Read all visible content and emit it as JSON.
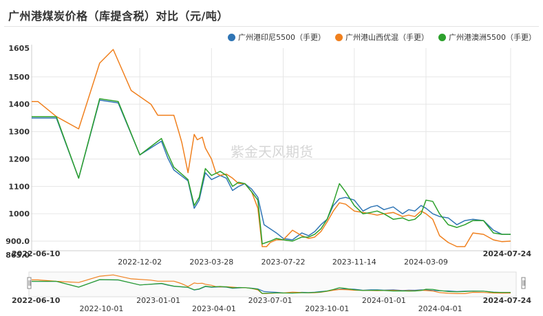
{
  "title": "广州港煤炭价格（库提含税）对比（元/吨）",
  "watermark": "紫金天风期货",
  "chart_data": {
    "type": "line",
    "ylim": [
      865,
      1605
    ],
    "y_ticks": [
      "1605",
      "1500",
      "1400",
      "1300",
      "1200",
      "1100",
      "1000",
      "900.0",
      "865.0"
    ],
    "y_tick_values": [
      1605,
      1500,
      1400,
      1300,
      1200,
      1100,
      1000,
      900,
      865
    ],
    "xlim": [
      "2022-06-10",
      "2024-07-24"
    ],
    "x_ticks": [
      "2022-06-10",
      "2022-12-02",
      "2023-03-28",
      "2023-07-22",
      "2023-11-14",
      "2024-03-09",
      "2024-07-24"
    ],
    "nav_ticks": [
      "2022-06-10",
      "2022-10-01",
      "2023-01-01",
      "2023-04-01",
      "2023-07-01",
      "2023-10-01",
      "2024-01-01",
      "2024-04-01",
      "2024-07-24"
    ],
    "grid": true,
    "legend_position": "top-right",
    "series": [
      {
        "name": "广州港印尼5500（手更）",
        "color": "#2f75b5",
        "points": [
          [
            "2022-06-10",
            1350
          ],
          [
            "2022-07-20",
            1350
          ],
          [
            "2022-08-25",
            1130
          ],
          [
            "2022-09-28",
            1415
          ],
          [
            "2022-10-28",
            1405
          ],
          [
            "2022-12-02",
            1215
          ],
          [
            "2023-01-06",
            1265
          ],
          [
            "2023-01-16",
            1205
          ],
          [
            "2023-01-26",
            1160
          ],
          [
            "2023-02-18",
            1120
          ],
          [
            "2023-02-28",
            1020
          ],
          [
            "2023-03-08",
            1050
          ],
          [
            "2023-03-18",
            1150
          ],
          [
            "2023-03-28",
            1125
          ],
          [
            "2023-04-11",
            1140
          ],
          [
            "2023-04-21",
            1130
          ],
          [
            "2023-05-01",
            1085
          ],
          [
            "2023-05-11",
            1100
          ],
          [
            "2023-05-21",
            1110
          ],
          [
            "2023-06-01",
            1090
          ],
          [
            "2023-06-11",
            1060
          ],
          [
            "2023-06-21",
            960
          ],
          [
            "2023-07-01",
            945
          ],
          [
            "2023-07-11",
            930
          ],
          [
            "2023-07-22",
            910
          ],
          [
            "2023-08-06",
            905
          ],
          [
            "2023-08-21",
            930
          ],
          [
            "2023-09-01",
            920
          ],
          [
            "2023-09-11",
            935
          ],
          [
            "2023-09-21",
            960
          ],
          [
            "2023-10-01",
            980
          ],
          [
            "2023-10-11",
            1030
          ],
          [
            "2023-10-21",
            1055
          ],
          [
            "2023-10-31",
            1060
          ],
          [
            "2023-11-14",
            1050
          ],
          [
            "2023-11-28",
            1010
          ],
          [
            "2023-12-11",
            1025
          ],
          [
            "2023-12-21",
            1030
          ],
          [
            "2024-01-01",
            1015
          ],
          [
            "2024-01-16",
            1025
          ],
          [
            "2024-01-31",
            1000
          ],
          [
            "2024-02-10",
            1015
          ],
          [
            "2024-02-20",
            1010
          ],
          [
            "2024-03-01",
            1030
          ],
          [
            "2024-03-09",
            1020
          ],
          [
            "2024-03-20",
            1000
          ],
          [
            "2024-03-31",
            990
          ],
          [
            "2024-04-14",
            985
          ],
          [
            "2024-04-28",
            960
          ],
          [
            "2024-05-11",
            975
          ],
          [
            "2024-05-24",
            980
          ],
          [
            "2024-06-10",
            975
          ],
          [
            "2024-06-26",
            940
          ],
          [
            "2024-07-10",
            925
          ],
          [
            "2024-07-24",
            925
          ]
        ]
      },
      {
        "name": "广州港山西优混（手更）",
        "color": "#f0801e",
        "points": [
          [
            "2022-06-10",
            1410
          ],
          [
            "2022-06-20",
            1410
          ],
          [
            "2022-07-20",
            1355
          ],
          [
            "2022-08-25",
            1310
          ],
          [
            "2022-09-28",
            1550
          ],
          [
            "2022-10-20",
            1600
          ],
          [
            "2022-11-18",
            1450
          ],
          [
            "2022-12-20",
            1400
          ],
          [
            "2022-12-31",
            1360
          ],
          [
            "2023-01-16",
            1360
          ],
          [
            "2023-01-26",
            1360
          ],
          [
            "2023-02-03",
            1300
          ],
          [
            "2023-02-08",
            1260
          ],
          [
            "2023-02-18",
            1150
          ],
          [
            "2023-02-28",
            1290
          ],
          [
            "2023-03-05",
            1270
          ],
          [
            "2023-03-13",
            1280
          ],
          [
            "2023-03-18",
            1240
          ],
          [
            "2023-03-28",
            1200
          ],
          [
            "2023-04-04",
            1150
          ],
          [
            "2023-04-11",
            1140
          ],
          [
            "2023-04-21",
            1145
          ],
          [
            "2023-05-01",
            1130
          ],
          [
            "2023-05-11",
            1110
          ],
          [
            "2023-05-21",
            1110
          ],
          [
            "2023-06-01",
            1080
          ],
          [
            "2023-06-11",
            1020
          ],
          [
            "2023-06-18",
            880
          ],
          [
            "2023-06-25",
            880
          ],
          [
            "2023-07-01",
            895
          ],
          [
            "2023-07-11",
            905
          ],
          [
            "2023-07-22",
            905
          ],
          [
            "2023-08-06",
            940
          ],
          [
            "2023-08-21",
            920
          ],
          [
            "2023-09-01",
            910
          ],
          [
            "2023-09-11",
            915
          ],
          [
            "2023-09-21",
            935
          ],
          [
            "2023-10-01",
            970
          ],
          [
            "2023-10-11",
            1010
          ],
          [
            "2023-10-21",
            1040
          ],
          [
            "2023-10-31",
            1035
          ],
          [
            "2023-11-14",
            1010
          ],
          [
            "2023-11-28",
            1005
          ],
          [
            "2023-12-11",
            1000
          ],
          [
            "2023-12-21",
            995
          ],
          [
            "2024-01-01",
            1000
          ],
          [
            "2024-01-16",
            1005
          ],
          [
            "2024-01-31",
            990
          ],
          [
            "2024-02-10",
            995
          ],
          [
            "2024-02-20",
            990
          ],
          [
            "2024-03-01",
            1010
          ],
          [
            "2024-03-09",
            1000
          ],
          [
            "2024-03-20",
            980
          ],
          [
            "2024-03-31",
            920
          ],
          [
            "2024-04-14",
            895
          ],
          [
            "2024-04-28",
            880
          ],
          [
            "2024-05-11",
            880
          ],
          [
            "2024-05-24",
            930
          ],
          [
            "2024-06-10",
            925
          ],
          [
            "2024-06-26",
            905
          ],
          [
            "2024-07-10",
            898
          ],
          [
            "2024-07-24",
            900
          ]
        ]
      },
      {
        "name": "广州港澳洲5500（手更）",
        "color": "#2ca02c",
        "points": [
          [
            "2022-06-10",
            1355
          ],
          [
            "2022-07-20",
            1355
          ],
          [
            "2022-08-25",
            1130
          ],
          [
            "2022-09-28",
            1420
          ],
          [
            "2022-10-28",
            1410
          ],
          [
            "2022-12-02",
            1215
          ],
          [
            "2023-01-06",
            1275
          ],
          [
            "2023-01-16",
            1220
          ],
          [
            "2023-01-26",
            1170
          ],
          [
            "2023-02-18",
            1125
          ],
          [
            "2023-02-28",
            1030
          ],
          [
            "2023-03-08",
            1060
          ],
          [
            "2023-03-18",
            1165
          ],
          [
            "2023-03-28",
            1140
          ],
          [
            "2023-04-11",
            1155
          ],
          [
            "2023-04-21",
            1140
          ],
          [
            "2023-05-01",
            1100
          ],
          [
            "2023-05-11",
            1115
          ],
          [
            "2023-05-21",
            1110
          ],
          [
            "2023-06-01",
            1080
          ],
          [
            "2023-06-11",
            1050
          ],
          [
            "2023-06-18",
            890
          ],
          [
            "2023-07-01",
            900
          ],
          [
            "2023-07-11",
            910
          ],
          [
            "2023-07-22",
            905
          ],
          [
            "2023-08-06",
            900
          ],
          [
            "2023-08-21",
            915
          ],
          [
            "2023-09-01",
            915
          ],
          [
            "2023-09-11",
            925
          ],
          [
            "2023-09-21",
            945
          ],
          [
            "2023-10-01",
            980
          ],
          [
            "2023-10-11",
            1040
          ],
          [
            "2023-10-21",
            1110
          ],
          [
            "2023-10-31",
            1080
          ],
          [
            "2023-11-14",
            1030
          ],
          [
            "2023-11-28",
            1000
          ],
          [
            "2023-12-11",
            1005
          ],
          [
            "2023-12-21",
            1010
          ],
          [
            "2024-01-01",
            1000
          ],
          [
            "2024-01-16",
            980
          ],
          [
            "2024-01-31",
            985
          ],
          [
            "2024-02-10",
            975
          ],
          [
            "2024-02-20",
            980
          ],
          [
            "2024-03-01",
            1000
          ],
          [
            "2024-03-09",
            1050
          ],
          [
            "2024-03-20",
            1045
          ],
          [
            "2024-03-31",
            1000
          ],
          [
            "2024-04-14",
            960
          ],
          [
            "2024-04-28",
            950
          ],
          [
            "2024-05-11",
            960
          ],
          [
            "2024-05-24",
            975
          ],
          [
            "2024-06-10",
            975
          ],
          [
            "2024-06-26",
            930
          ],
          [
            "2024-07-10",
            925
          ],
          [
            "2024-07-24",
            925
          ]
        ]
      }
    ]
  }
}
